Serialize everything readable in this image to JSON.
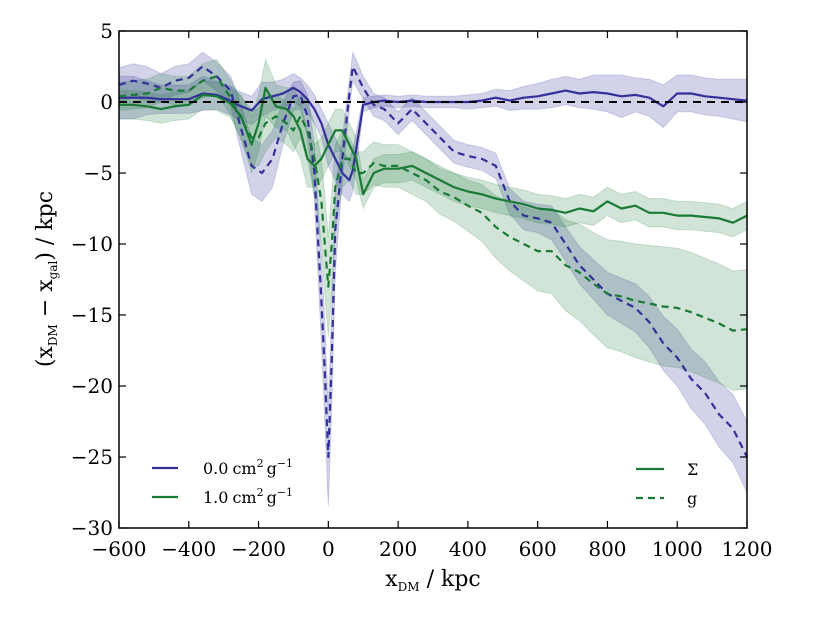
{
  "chart_data": {
    "type": "line",
    "title": "",
    "xlabel": {
      "main": "x",
      "sub": "DM",
      "rest": " / kpc"
    },
    "ylabel": {
      "open": "(x",
      "sub1": "DM",
      "mid": " − x",
      "sub2": "gal",
      "rest": ") / kpc"
    },
    "xlim": [
      -600,
      1200
    ],
    "ylim": [
      -30,
      5
    ],
    "xticks": [
      -600,
      -400,
      -200,
      0,
      200,
      400,
      600,
      800,
      1000,
      1200
    ],
    "yticks": [
      5,
      0,
      -5,
      -10,
      -15,
      -20,
      -25,
      -30
    ],
    "xtick_labels": [
      "−600",
      "−400",
      "−200",
      "0",
      "200",
      "400",
      "600",
      "800",
      "1000",
      "1200"
    ],
    "ytick_labels": [
      "5",
      "0",
      "−5",
      "−10",
      "−15",
      "−20",
      "−25",
      "−30"
    ],
    "grid": false,
    "reference_line": {
      "y": 0,
      "style": "dashed",
      "color": "#000000"
    },
    "colors": {
      "purple": "#33309a",
      "green": "#187a35"
    },
    "legend": {
      "cross_sections": [
        {
          "value": "0.0",
          "units": "cm",
          "pow1": "2",
          "g": "g",
          "pow2": "−1",
          "color": "#33309a"
        },
        {
          "value": "1.0",
          "units": "cm",
          "pow1": "2",
          "g": "g",
          "pow2": "−1",
          "color": "#187a35"
        }
      ],
      "estimators": [
        {
          "label": "Σ",
          "style": "solid"
        },
        {
          "label": "g",
          "style": "dashed"
        }
      ]
    },
    "series": [
      {
        "name": "0.0 cm2 g-1, Σ",
        "color": "#33309a",
        "style": "solid",
        "band_opacity": 0.22,
        "x": [
          -600,
          -560,
          -520,
          -480,
          -440,
          -400,
          -360,
          -320,
          -280,
          -260,
          -220,
          -190,
          -160,
          -130,
          -100,
          -80,
          -60,
          -40,
          -20,
          0,
          20,
          40,
          60,
          70,
          100,
          130,
          160,
          200,
          240,
          280,
          320,
          360,
          400,
          440,
          480,
          520,
          560,
          600,
          640,
          680,
          720,
          760,
          800,
          840,
          880,
          920,
          960,
          1000,
          1040,
          1080,
          1120,
          1160,
          1200
        ],
        "y": [
          0.3,
          0.3,
          0.3,
          0.2,
          0.2,
          0.2,
          0.6,
          0.5,
          0.1,
          -0.2,
          -0.6,
          0.2,
          0.4,
          0.6,
          1.0,
          0.7,
          0.2,
          -0.5,
          -1.5,
          -3.0,
          -4.0,
          -5.0,
          -5.5,
          -4.8,
          -0.2,
          0.0,
          0.1,
          0.0,
          0.1,
          0.0,
          0.0,
          0.0,
          0.0,
          0.1,
          0.3,
          0.1,
          0.3,
          0.4,
          0.6,
          0.8,
          0.6,
          0.7,
          0.6,
          0.4,
          0.5,
          0.3,
          -0.3,
          0.6,
          0.6,
          0.4,
          0.3,
          0.2,
          0.1
        ],
        "err": [
          1.5,
          1.5,
          1.2,
          1.0,
          1.0,
          1.0,
          1.2,
          1.0,
          1.0,
          1.0,
          1.0,
          1.2,
          1.0,
          1.0,
          1.0,
          1.0,
          1.0,
          1.0,
          1.0,
          1.5,
          1.5,
          1.5,
          1.5,
          1.5,
          0.5,
          0.4,
          0.4,
          0.4,
          0.4,
          0.4,
          0.4,
          0.4,
          0.5,
          0.5,
          0.6,
          0.7,
          0.8,
          0.9,
          1.0,
          1.0,
          1.0,
          1.2,
          1.3,
          1.5,
          1.2,
          1.3,
          1.5,
          1.3,
          1.3,
          1.3,
          1.3,
          1.4,
          1.5
        ]
      },
      {
        "name": "0.0 cm2 g-1, g",
        "color": "#33309a",
        "style": "dashed",
        "band_opacity": 0.22,
        "x": [
          -600,
          -560,
          -520,
          -480,
          -440,
          -400,
          -360,
          -320,
          -280,
          -260,
          -220,
          -190,
          -160,
          -130,
          -100,
          -80,
          -60,
          -40,
          -20,
          -10,
          0,
          10,
          20,
          40,
          60,
          70,
          100,
          130,
          160,
          200,
          240,
          280,
          320,
          360,
          400,
          440,
          480,
          520,
          560,
          600,
          640,
          680,
          720,
          760,
          800,
          840,
          880,
          920,
          960,
          1000,
          1040,
          1080,
          1120,
          1160,
          1200
        ],
        "y": [
          1.2,
          1.5,
          1.3,
          1.0,
          1.5,
          1.7,
          2.5,
          1.8,
          0.8,
          -1.0,
          -4.5,
          -5.0,
          -4.0,
          -1.5,
          0.4,
          0.5,
          -1.0,
          -5.0,
          -14.0,
          -19.0,
          -25.0,
          -18.0,
          -9.0,
          -4.0,
          0.5,
          2.5,
          1.0,
          -0.2,
          -0.5,
          -1.5,
          -0.5,
          -1.5,
          -2.5,
          -3.5,
          -3.8,
          -4.0,
          -4.5,
          -7.0,
          -8.0,
          -8.2,
          -8.5,
          -10.0,
          -11.5,
          -12.5,
          -13.5,
          -14.0,
          -14.5,
          -15.5,
          -17.0,
          -18.0,
          -19.5,
          -20.5,
          -22.0,
          -23.0,
          -25.0
        ],
        "err": [
          1.2,
          1.2,
          1.2,
          1.0,
          1.0,
          1.0,
          1.0,
          1.0,
          1.0,
          1.5,
          2.0,
          2.0,
          2.0,
          1.5,
          1.0,
          1.0,
          1.5,
          2.0,
          3.0,
          3.5,
          3.5,
          3.5,
          3.0,
          1.5,
          1.0,
          1.0,
          0.8,
          0.8,
          0.8,
          0.8,
          0.8,
          0.8,
          0.8,
          0.8,
          0.8,
          0.8,
          0.9,
          0.9,
          1.0,
          1.0,
          1.2,
          1.2,
          1.3,
          1.4,
          1.5,
          1.6,
          1.7,
          1.8,
          1.9,
          2.0,
          2.1,
          2.2,
          2.3,
          2.4,
          2.5
        ]
      },
      {
        "name": "1.0 cm2 g-1, Σ",
        "color": "#187a35",
        "style": "solid",
        "band_opacity": 0.2,
        "x": [
          -600,
          -560,
          -520,
          -480,
          -440,
          -400,
          -360,
          -320,
          -280,
          -250,
          -220,
          -200,
          -180,
          -150,
          -120,
          -100,
          -80,
          -60,
          -40,
          -20,
          0,
          20,
          40,
          60,
          80,
          100,
          130,
          160,
          200,
          240,
          280,
          320,
          360,
          400,
          440,
          480,
          520,
          560,
          600,
          640,
          680,
          720,
          760,
          800,
          840,
          880,
          920,
          960,
          1000,
          1040,
          1080,
          1120,
          1160,
          1200
        ],
        "y": [
          -0.2,
          -0.2,
          -0.3,
          -0.5,
          -0.3,
          -0.2,
          0.5,
          0.4,
          -0.1,
          -1.0,
          -3.0,
          -1.5,
          1.0,
          -0.3,
          -0.5,
          -1.0,
          -2.0,
          -4.0,
          -4.5,
          -4.0,
          -3.0,
          -2.0,
          -2.0,
          -3.0,
          -4.0,
          -6.5,
          -5.0,
          -4.7,
          -4.7,
          -4.5,
          -5.0,
          -5.5,
          -6.0,
          -6.3,
          -6.5,
          -6.8,
          -7.0,
          -7.2,
          -7.5,
          -7.6,
          -7.8,
          -7.5,
          -7.7,
          -7.0,
          -7.5,
          -7.3,
          -7.8,
          -7.8,
          -8.0,
          -8.0,
          -8.1,
          -8.2,
          -8.5,
          -8.0
        ],
        "err": [
          1.0,
          1.0,
          1.0,
          1.0,
          1.0,
          1.0,
          1.0,
          1.0,
          1.0,
          1.5,
          2.0,
          2.0,
          2.0,
          1.5,
          1.5,
          2.0,
          2.0,
          2.0,
          1.5,
          1.5,
          1.5,
          1.5,
          1.5,
          1.5,
          1.5,
          1.0,
          1.0,
          1.0,
          1.0,
          1.0,
          1.0,
          1.0,
          1.0,
          1.0,
          1.0,
          1.0,
          1.0,
          1.0,
          1.0,
          1.0,
          1.0,
          1.0,
          1.0,
          1.0,
          1.0,
          1.0,
          1.0,
          1.0,
          1.0,
          1.0,
          1.0,
          1.0,
          1.0,
          1.0
        ]
      },
      {
        "name": "1.0 cm2 g-1, g",
        "color": "#187a35",
        "style": "dashed",
        "band_opacity": 0.2,
        "x": [
          -600,
          -560,
          -520,
          -480,
          -440,
          -400,
          -360,
          -320,
          -280,
          -250,
          -220,
          -200,
          -180,
          -150,
          -120,
          -100,
          -80,
          -60,
          -40,
          -20,
          -10,
          0,
          10,
          20,
          40,
          60,
          80,
          100,
          130,
          160,
          200,
          240,
          280,
          320,
          360,
          400,
          440,
          480,
          520,
          560,
          600,
          640,
          680,
          720,
          760,
          800,
          840,
          880,
          920,
          960,
          1000,
          1040,
          1080,
          1120,
          1160,
          1200
        ],
        "y": [
          0.4,
          0.5,
          0.6,
          1.0,
          0.8,
          0.8,
          1.5,
          1.8,
          0.3,
          -1.2,
          -2.5,
          -2.5,
          -1.5,
          -1.0,
          -1.5,
          -2.0,
          -1.0,
          -2.0,
          -4.0,
          -7.0,
          -10.0,
          -13.0,
          -10.0,
          -6.0,
          -4.0,
          -4.0,
          -5.0,
          -5.0,
          -4.3,
          -4.5,
          -4.5,
          -5.0,
          -5.5,
          -6.3,
          -6.7,
          -7.3,
          -7.8,
          -8.8,
          -9.5,
          -10.0,
          -10.5,
          -10.5,
          -11.5,
          -12.0,
          -12.8,
          -13.5,
          -13.7,
          -14.0,
          -14.2,
          -14.4,
          -14.5,
          -14.8,
          -15.2,
          -15.6,
          -16.1,
          -16.0
        ],
        "err": [
          1.0,
          1.0,
          1.0,
          1.0,
          1.0,
          1.0,
          1.2,
          1.2,
          1.2,
          1.5,
          2.0,
          2.0,
          2.0,
          1.5,
          1.5,
          1.5,
          1.5,
          2.0,
          2.5,
          3.0,
          3.5,
          3.5,
          3.5,
          3.0,
          2.0,
          1.5,
          1.5,
          1.5,
          1.5,
          1.5,
          1.5,
          1.5,
          1.5,
          1.6,
          1.7,
          1.8,
          2.0,
          2.2,
          2.4,
          2.6,
          2.8,
          3.0,
          3.2,
          3.4,
          3.6,
          3.8,
          3.9,
          4.0,
          4.1,
          4.2,
          4.2,
          4.2,
          4.2,
          4.2,
          4.2,
          4.2
        ]
      }
    ]
  }
}
